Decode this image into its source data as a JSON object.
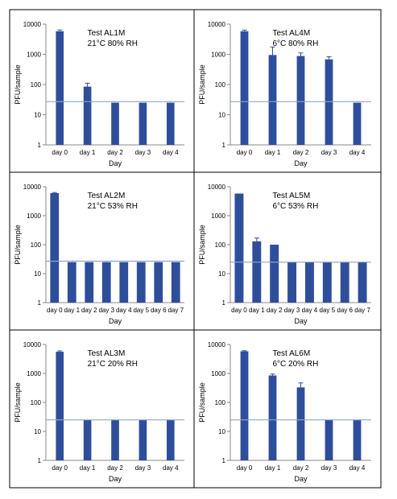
{
  "colors": {
    "bar": "#2E4E9A",
    "threshold_line": "#8CA8CC",
    "axis": "#888888",
    "panel_border": "#000000",
    "text": "#000000"
  },
  "chart_data": [
    {
      "type": "bar",
      "title": "Test AL1M",
      "subtitle": "21°C 80% RH",
      "xlabel": "Day",
      "ylabel": "PFU/sample",
      "yscale": "log",
      "ylim": [
        1,
        10000
      ],
      "yticks": [
        "1",
        "10",
        "100",
        "1000",
        "10000"
      ],
      "categories": [
        "day 0",
        "day 1",
        "day 2",
        "day 3",
        "day 4"
      ],
      "values": [
        5800,
        85,
        25,
        25,
        25
      ],
      "errors": [
        600,
        25,
        0,
        0,
        0
      ],
      "threshold": 27
    },
    {
      "type": "bar",
      "title": "Test AL4M",
      "subtitle": "6°C 80% RH",
      "xlabel": "Day",
      "ylabel": "PFU/sample",
      "yscale": "log",
      "ylim": [
        1,
        10000
      ],
      "yticks": [
        "1",
        "10",
        "100",
        "1000",
        "10000"
      ],
      "categories": [
        "day 0",
        "day 1",
        "day 2",
        "day 3",
        "day 4"
      ],
      "values": [
        5800,
        950,
        880,
        680,
        25
      ],
      "errors": [
        500,
        800,
        230,
        150,
        0
      ],
      "threshold": 27
    },
    {
      "type": "bar",
      "title": "Test AL2M",
      "subtitle": "21°C 53% RH",
      "xlabel": "Day",
      "ylabel": "PFU/sample",
      "yscale": "log",
      "ylim": [
        1,
        10000
      ],
      "yticks": [
        "1",
        "10",
        "100",
        "1000",
        "10000"
      ],
      "categories": [
        "day 0",
        "day 1",
        "day 2",
        "day 3",
        "day 4",
        "day 5",
        "day 6",
        "day 7"
      ],
      "values": [
        6000,
        25,
        25,
        25,
        25,
        25,
        25,
        25
      ],
      "errors": [
        300,
        0,
        0,
        0,
        0,
        0,
        0,
        0
      ],
      "threshold": 27
    },
    {
      "type": "bar",
      "title": "Test AL5M",
      "subtitle": "6°C 53% RH",
      "xlabel": "Day",
      "ylabel": "PFU/sample",
      "yscale": "log",
      "ylim": [
        1,
        10000
      ],
      "yticks": [
        "1",
        "10",
        "100",
        "1000",
        "10000"
      ],
      "categories": [
        "day 0",
        "day 1",
        "day 2",
        "day 3",
        "day 4",
        "day 5",
        "day 6",
        "day 7"
      ],
      "values": [
        5800,
        130,
        100,
        25,
        25,
        25,
        25,
        25
      ],
      "errors": [
        0,
        40,
        0,
        0,
        0,
        0,
        0,
        0
      ],
      "threshold": 25
    },
    {
      "type": "bar",
      "title": "Test AL3M",
      "subtitle": "21°C 20% RH",
      "xlabel": "Day",
      "ylabel": "PFU/sample",
      "yscale": "log",
      "ylim": [
        1,
        10000
      ],
      "yticks": [
        "1",
        "10",
        "100",
        "1000",
        "10000"
      ],
      "categories": [
        "day 0",
        "day 1",
        "day 2",
        "day 3",
        "day 4"
      ],
      "values": [
        5600,
        25,
        25,
        25,
        25
      ],
      "errors": [
        400,
        0,
        0,
        0,
        0
      ],
      "threshold": 25
    },
    {
      "type": "bar",
      "title": "Test AL6M",
      "subtitle": "6°C 20% RH",
      "xlabel": "Day",
      "ylabel": "PFU/sample",
      "yscale": "log",
      "ylim": [
        1,
        10000
      ],
      "yticks": [
        "1",
        "10",
        "100",
        "1000",
        "10000"
      ],
      "categories": [
        "day 0",
        "day 1",
        "day 2",
        "day 3",
        "day 4"
      ],
      "values": [
        5800,
        850,
        330,
        25,
        25
      ],
      "errors": [
        300,
        100,
        140,
        0,
        0
      ],
      "threshold": 25
    }
  ]
}
